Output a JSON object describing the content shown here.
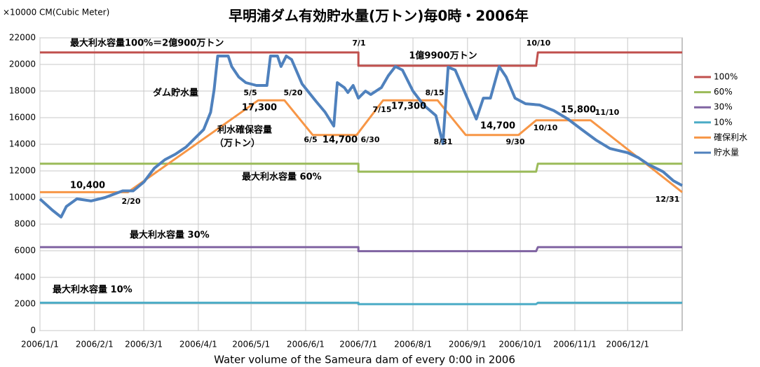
{
  "chart_data": {
    "type": "line",
    "title": "早明浦ダム有効貯水量(万トン)毎0時・2006年",
    "y_label": "×10000 CM(Cubic Meter)",
    "x_label": "Water volume of the Sameura dam of every 0:00 in 2006",
    "xlim": [
      0,
      365
    ],
    "xticks": [
      {
        "value": 0,
        "label": "2006/1/1"
      },
      {
        "value": 31,
        "label": "2006/2/1"
      },
      {
        "value": 59,
        "label": "2006/3/1"
      },
      {
        "value": 90,
        "label": "2006/4/1"
      },
      {
        "value": 120,
        "label": "2006/5/1"
      },
      {
        "value": 151,
        "label": "2006/6/1"
      },
      {
        "value": 181,
        "label": "2006/7/1"
      },
      {
        "value": 212,
        "label": "2006/8/1"
      },
      {
        "value": 243,
        "label": "2006/9/1"
      },
      {
        "value": 273,
        "label": "2006/10/1"
      },
      {
        "value": 304,
        "label": "2006/11/1"
      },
      {
        "value": 334,
        "label": "2006/12/1"
      }
    ],
    "ylim": [
      0,
      22000
    ],
    "yticks": [
      0,
      2000,
      4000,
      6000,
      8000,
      10000,
      12000,
      14000,
      16000,
      18000,
      20000,
      22000
    ],
    "grid": true,
    "legend": "right",
    "series": [
      {
        "name": "100%",
        "color": "#c0504d",
        "x": [
          0,
          181,
          181,
          282,
          283,
          365
        ],
        "values": [
          20900,
          20900,
          19900,
          19900,
          20900,
          20900
        ]
      },
      {
        "name": "60%",
        "color": "#9bbb59",
        "x": [
          0,
          181,
          181,
          282,
          283,
          365
        ],
        "values": [
          12540,
          12540,
          11940,
          11940,
          12540,
          12540
        ]
      },
      {
        "name": "30%",
        "color": "#8064a2",
        "x": [
          0,
          181,
          181,
          282,
          283,
          365
        ],
        "values": [
          6270,
          6270,
          5970,
          5970,
          6270,
          6270
        ]
      },
      {
        "name": "10%",
        "color": "#4bacc6",
        "x": [
          0,
          181,
          181,
          282,
          283,
          365
        ],
        "values": [
          2090,
          2090,
          1990,
          1990,
          2090,
          2090
        ]
      },
      {
        "name": "確保利水",
        "color": "#f79646",
        "x": [
          0,
          50,
          124,
          139,
          155,
          180,
          195,
          226,
          242,
          272,
          282,
          313,
          365
        ],
        "values": [
          10400,
          10400,
          17300,
          17300,
          14700,
          14700,
          17300,
          17300,
          14700,
          14700,
          15800,
          15800,
          10400
        ]
      },
      {
        "name": "貯水量",
        "color": "#4f81bd",
        "x": [
          0,
          7,
          12,
          15,
          21,
          29,
          37,
          47,
          53,
          59,
          65,
          71,
          77,
          83,
          93,
          97,
          99,
          101,
          107,
          109,
          113,
          117,
          123,
          129,
          131,
          135,
          137,
          140,
          143,
          149,
          157,
          162,
          167,
          169,
          173,
          175,
          178,
          181,
          185,
          188,
          194,
          198,
          202,
          206,
          212,
          218,
          225,
          229,
          232,
          236,
          242,
          248,
          252,
          256,
          261,
          265,
          270,
          276,
          284,
          292,
          300,
          308,
          316,
          324,
          334,
          340,
          346,
          354,
          360,
          365
        ],
        "values": [
          9890,
          9050,
          8530,
          9320,
          9900,
          9740,
          10000,
          10500,
          10500,
          11160,
          12200,
          12840,
          13260,
          13790,
          15100,
          16400,
          18100,
          20630,
          20630,
          19840,
          19050,
          18630,
          18420,
          18420,
          20630,
          20630,
          19840,
          20630,
          20370,
          18530,
          17210,
          16420,
          15370,
          18630,
          18260,
          17890,
          18420,
          17470,
          18000,
          17740,
          18260,
          19160,
          19840,
          19580,
          18000,
          16950,
          16160,
          14050,
          19790,
          19580,
          17740,
          15900,
          17470,
          17470,
          19840,
          19050,
          17470,
          17050,
          16950,
          16530,
          15900,
          15100,
          14320,
          13680,
          13370,
          13000,
          12470,
          11950,
          11260,
          10900
        ]
      }
    ],
    "annotations": [
      "最大利水容量100%＝2億900万トン",
      "7/1",
      "10/10",
      "1億9900万トン",
      "ダム貯水量",
      "5/5",
      "5/20",
      "17,300",
      "8/15",
      "7/15",
      "17,300",
      "利水確保容量",
      "（万トン）",
      "15,800",
      "11/10",
      "10/10",
      "14,700",
      "6/5",
      "14,700",
      "6/30",
      "8/31",
      "9/30",
      "10,400",
      "2/20",
      "最大利水容量 60%",
      "12/31",
      "最大利水容量 30%",
      "最大利水容量 10%"
    ]
  }
}
